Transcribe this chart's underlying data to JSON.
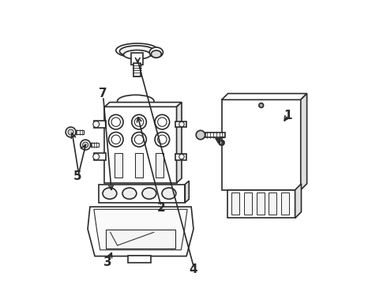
{
  "bg_color": "#ffffff",
  "line_color": "#2a2a2a",
  "lw": 1.2,
  "label_fontsize": 11,
  "label_fontweight": "bold"
}
